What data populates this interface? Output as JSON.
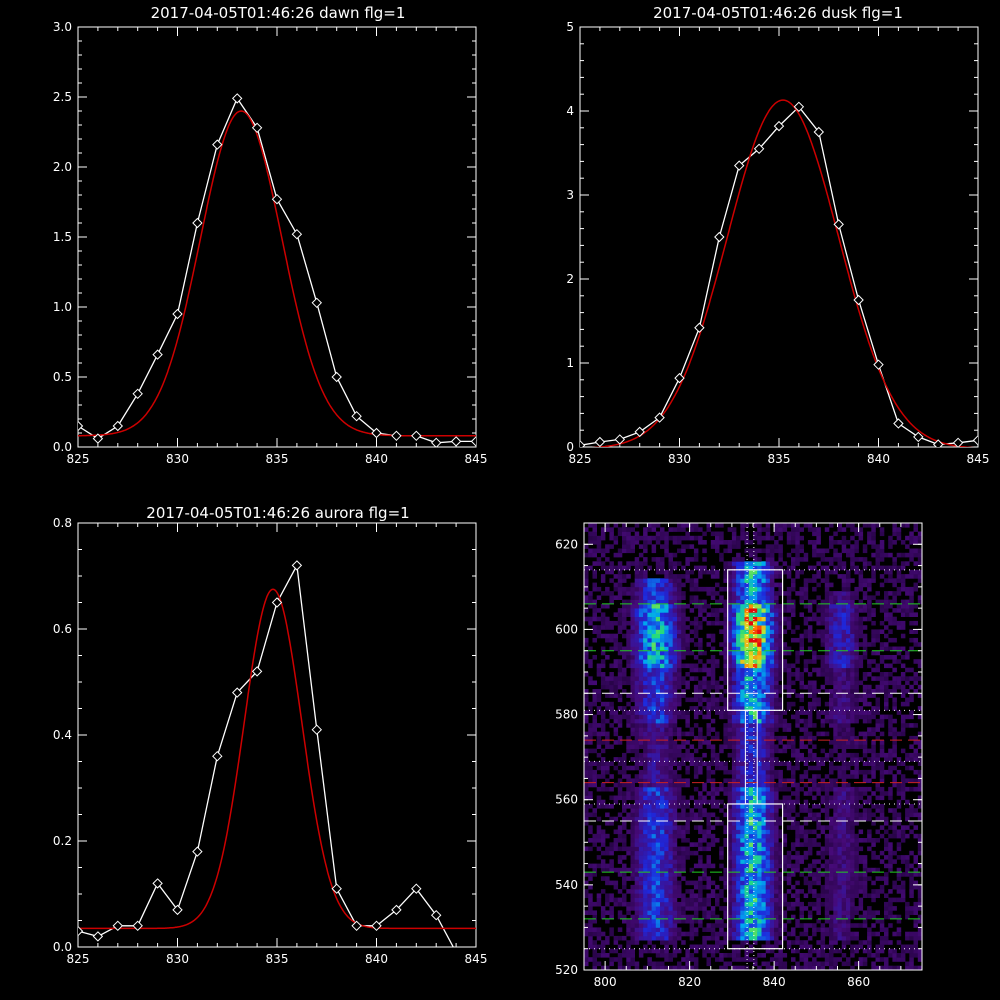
{
  "chart_data": [
    {
      "type": "line",
      "title": "2017-04-05T01:46:26 dawn flg=1",
      "xlim": [
        825,
        845
      ],
      "ylim": [
        0,
        3
      ],
      "xticks": [
        825,
        830,
        835,
        840,
        845
      ],
      "xtick_labels": [
        "825",
        "830",
        "835",
        "840",
        "845"
      ],
      "yticks": [
        0,
        0.5,
        1,
        1.5,
        2,
        2.5,
        3
      ],
      "ytick_labels": [
        "0.0",
        "0.5",
        "1.0",
        "1.5",
        "2.0",
        "2.5",
        "3.0"
      ],
      "series": [
        {
          "role": "data",
          "color": "#ffffff",
          "marker": "diamond",
          "x": [
            825,
            826,
            827,
            828,
            829,
            830,
            831,
            832,
            833,
            834,
            835,
            836,
            837,
            838,
            839,
            840,
            841,
            842,
            843,
            844,
            845
          ],
          "y": [
            0.15,
            0.06,
            0.15,
            0.38,
            0.66,
            0.95,
            1.6,
            2.16,
            2.49,
            2.28,
            1.77,
            1.52,
            1.03,
            0.5,
            0.22,
            0.1,
            0.08,
            0.08,
            0.03,
            0.04,
            0.04
          ]
        },
        {
          "role": "fit",
          "color": "#cc0000",
          "gauss": {
            "amp": 2.32,
            "center": 833.2,
            "sigma": 2.05,
            "offset": 0.08
          }
        }
      ]
    },
    {
      "type": "line",
      "title": "2017-04-05T01:46:26 dusk flg=1",
      "xlim": [
        825,
        845
      ],
      "ylim": [
        0,
        5
      ],
      "xticks": [
        825,
        830,
        835,
        840,
        845
      ],
      "xtick_labels": [
        "825",
        "830",
        "835",
        "840",
        "845"
      ],
      "yticks": [
        0,
        1,
        2,
        3,
        4,
        5
      ],
      "ytick_labels": [
        "0",
        "1",
        "2",
        "3",
        "4",
        "5"
      ],
      "series": [
        {
          "role": "data",
          "color": "#ffffff",
          "marker": "diamond",
          "x": [
            825,
            826,
            827,
            828,
            829,
            830,
            831,
            832,
            833,
            834,
            835,
            836,
            837,
            838,
            839,
            840,
            841,
            842,
            843,
            844,
            845
          ],
          "y": [
            0.02,
            0.06,
            0.09,
            0.18,
            0.35,
            0.82,
            1.42,
            2.5,
            3.35,
            3.55,
            3.82,
            4.05,
            3.75,
            2.65,
            1.75,
            0.98,
            0.28,
            0.12,
            0.03,
            0.05,
            0.08
          ]
        },
        {
          "role": "fit",
          "color": "#cc0000",
          "gauss": {
            "amp": 4.15,
            "center": 835.2,
            "sigma": 2.8,
            "offset": -0.02
          }
        }
      ]
    },
    {
      "type": "line",
      "title": "2017-04-05T01:46:26 aurora flg=1",
      "xlim": [
        825,
        845
      ],
      "ylim": [
        0,
        0.8
      ],
      "xticks": [
        825,
        830,
        835,
        840,
        845
      ],
      "xtick_labels": [
        "825",
        "830",
        "835",
        "840",
        "845"
      ],
      "yticks": [
        0,
        0.2,
        0.4,
        0.6,
        0.8
      ],
      "ytick_labels": [
        "0.0",
        "0.2",
        "0.4",
        "0.6",
        "0.8"
      ],
      "series": [
        {
          "role": "data",
          "color": "#ffffff",
          "marker": "diamond",
          "x": [
            825,
            826,
            827,
            828,
            829,
            830,
            831,
            832,
            833,
            834,
            835,
            836,
            837,
            838,
            839,
            840,
            841,
            842,
            843,
            844,
            845
          ],
          "y": [
            0.03,
            0.02,
            0.04,
            0.04,
            0.12,
            0.07,
            0.18,
            0.36,
            0.48,
            0.52,
            0.65,
            0.72,
            0.41,
            0.11,
            0.04,
            0.04,
            0.07,
            0.11,
            0.06,
            -0.01,
            -0.04
          ]
        },
        {
          "role": "fit",
          "color": "#cc0000",
          "gauss": {
            "amp": 0.64,
            "center": 834.8,
            "sigma": 1.45,
            "offset": 0.035
          }
        }
      ]
    },
    {
      "type": "heatmap",
      "title": "",
      "xlim": [
        795,
        875
      ],
      "ylim": [
        520,
        625
      ],
      "xticks": [
        800,
        820,
        840,
        860
      ],
      "xtick_labels": [
        "800",
        "820",
        "840",
        "860"
      ],
      "yticks": [
        520,
        540,
        560,
        580,
        600,
        620
      ],
      "ytick_labels": [
        "520",
        "540",
        "560",
        "580",
        "600",
        "620"
      ],
      "bands": [
        {
          "center": 812,
          "width": 3.5,
          "y_range": [
            527,
            611
          ],
          "peak": 0.62
        },
        {
          "center": 835,
          "width": 3.2,
          "y_range": [
            527,
            615
          ],
          "peak": 1.0
        },
        {
          "center": 856,
          "width": 3.0,
          "y_range": [
            527,
            608
          ],
          "peak": 0.3
        }
      ],
      "boxes": [
        {
          "x": [
            829,
            842
          ],
          "y": [
            581,
            614
          ],
          "color": "#ffffff"
        },
        {
          "x": [
            829,
            842
          ],
          "y": [
            525,
            559
          ],
          "color": "#ffffff"
        }
      ],
      "vlines": [
        {
          "x": 833.6,
          "style": "dotted",
          "color": "#ffffff"
        },
        {
          "x": 835.2,
          "style": "dotted",
          "color": "#ffffff"
        }
      ],
      "hlines": [
        {
          "y": 614,
          "style": "dotted",
          "color": "#ffffff"
        },
        {
          "y": 606,
          "style": "dashed",
          "color": "#22cc22"
        },
        {
          "y": 595,
          "style": "dashed",
          "color": "#22cc22"
        },
        {
          "y": 585,
          "style": "dashed",
          "color": "#ffffff"
        },
        {
          "y": 581,
          "style": "dotted",
          "color": "#ffffff"
        },
        {
          "y": 574,
          "style": "dashed",
          "color": "#cc2222"
        },
        {
          "y": 569,
          "style": "dotted",
          "color": "#ffffff"
        },
        {
          "y": 564,
          "style": "dashed",
          "color": "#cc2222"
        },
        {
          "y": 559,
          "style": "dotted",
          "color": "#ffffff"
        },
        {
          "y": 555,
          "style": "dashed",
          "color": "#ffffff"
        },
        {
          "y": 543,
          "style": "dashed",
          "color": "#22cc22"
        },
        {
          "y": 532,
          "style": "dashed",
          "color": "#22cc22"
        },
        {
          "y": 525,
          "style": "dotted",
          "color": "#ffffff"
        }
      ]
    }
  ]
}
